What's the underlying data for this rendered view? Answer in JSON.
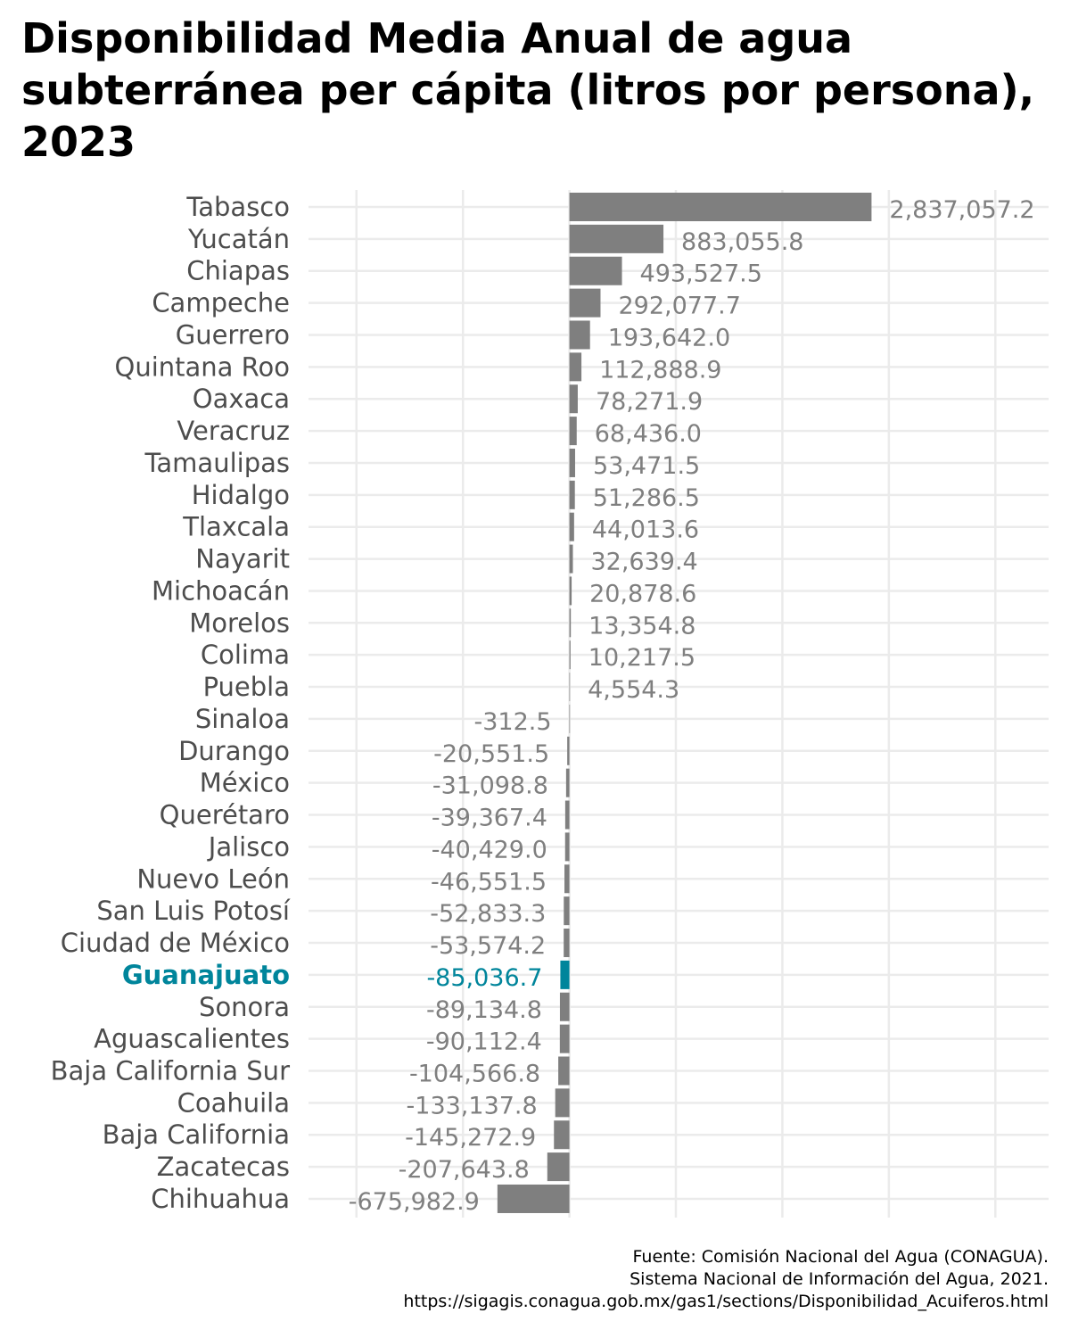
{
  "chart_data": {
    "type": "bar",
    "orientation": "horizontal",
    "title": "Disponibilidad Media Anual de agua subterránea per cápita (litros por persona), 2023",
    "categories": [
      "Tabasco",
      "Yucatán",
      "Chiapas",
      "Campeche",
      "Guerrero",
      "Quintana Roo",
      "Oaxaca",
      "Veracruz",
      "Tamaulipas",
      "Hidalgo",
      "Tlaxcala",
      "Nayarit",
      "Michoacán",
      "Morelos",
      "Colima",
      "Puebla",
      "Sinaloa",
      "Durango",
      "México",
      "Querétaro",
      "Jalisco",
      "Nuevo León",
      "San Luis Potosí",
      "Ciudad de México",
      "Guanajuato",
      "Sonora",
      "Aguascalientes",
      "Baja California Sur",
      "Coahuila",
      "Baja California",
      "Zacatecas",
      "Chihuahua"
    ],
    "values": [
      2837057.2,
      883055.8,
      493527.5,
      292077.7,
      193642.0,
      112888.9,
      78271.9,
      68436.0,
      53471.5,
      51286.5,
      44013.6,
      32639.4,
      20878.6,
      13354.8,
      10217.5,
      4554.3,
      -312.5,
      -20551.5,
      -31098.8,
      -39367.4,
      -40429.0,
      -46551.5,
      -52833.3,
      -53574.2,
      -85036.7,
      -89134.8,
      -90112.4,
      -104566.8,
      -133137.8,
      -145272.9,
      -207643.8,
      -675982.9
    ],
    "value_labels": [
      "2,837,057.2",
      "883,055.8",
      "493,527.5",
      "292,077.7",
      "193,642.0",
      "112,888.9",
      "78,271.9",
      "68,436.0",
      "53,471.5",
      "51,286.5",
      "44,013.6",
      "32,639.4",
      "20,878.6",
      "13,354.8",
      "10,217.5",
      "4,554.3",
      "-312.5",
      "-20,551.5",
      "-31,098.8",
      "-39,367.4",
      "-40,429.0",
      "-46,551.5",
      "-52,833.3",
      "-53,574.2",
      "-85,036.7",
      "-89,134.8",
      "-90,112.4",
      "-104,566.8",
      "-133,137.8",
      "-145,272.9",
      "-207,643.8",
      "-675,982.9"
    ],
    "highlight": "Guanajuato",
    "colors": {
      "bar": "#7f7f7f",
      "highlight": "#00859b",
      "grid": "#ebebeb",
      "label": "#4d4d4d",
      "value_label": "#7f7f7f"
    },
    "xlim": [
      -2450000,
      4500000
    ],
    "xticks": [
      -2000000,
      -1000000,
      0,
      1000000,
      2000000,
      3000000,
      4000000
    ],
    "grid": true,
    "x_axis_labels_shown": false,
    "caption": [
      "Fuente: Comisión Nacional del Agua (CONAGUA).",
      "Sistema Nacional de Información del Agua, 2021.",
      "https://sigagis.conagua.gob.mx/gas1/sections/Disponibilidad_Acuiferos.html"
    ]
  }
}
